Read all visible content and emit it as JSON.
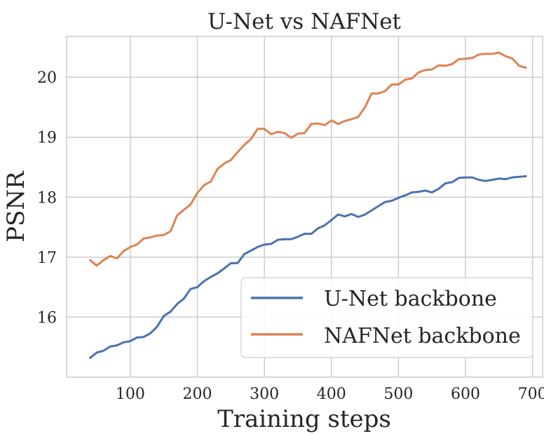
{
  "chart_data": {
    "type": "line",
    "title": "U-Net vs NAFNet",
    "xlabel": "Training steps",
    "ylabel": "PSNR",
    "xlim": [
      5,
      715
    ],
    "ylim": [
      15.0,
      20.68
    ],
    "xticks": [
      100,
      200,
      300,
      400,
      500,
      600,
      700
    ],
    "yticks": [
      16,
      17,
      18,
      19,
      20
    ],
    "grid": true,
    "legend_position": "lower-right",
    "colors": {
      "unet": "#4c72b0",
      "nafnet": "#dd8452"
    },
    "x": [
      40,
      50,
      60,
      70,
      80,
      90,
      100,
      110,
      120,
      130,
      140,
      150,
      160,
      170,
      180,
      190,
      200,
      210,
      220,
      230,
      240,
      250,
      260,
      270,
      280,
      290,
      300,
      310,
      320,
      330,
      340,
      350,
      360,
      370,
      380,
      390,
      400,
      410,
      420,
      430,
      440,
      450,
      460,
      470,
      480,
      490,
      500,
      510,
      520,
      530,
      540,
      550,
      560,
      570,
      580,
      590,
      600,
      610,
      620,
      630,
      640,
      650,
      660,
      670,
      680,
      690
    ],
    "series": [
      {
        "name": "U-Net backbone",
        "color": "#4c72b0",
        "values": [
          15.32,
          15.41,
          15.44,
          15.51,
          15.53,
          15.58,
          15.6,
          15.66,
          15.67,
          15.73,
          15.84,
          16.02,
          16.09,
          16.22,
          16.31,
          16.47,
          16.5,
          16.6,
          16.67,
          16.73,
          16.81,
          16.9,
          16.9,
          17.05,
          17.11,
          17.17,
          17.21,
          17.22,
          17.29,
          17.3,
          17.3,
          17.34,
          17.39,
          17.39,
          17.48,
          17.53,
          17.62,
          17.71,
          17.68,
          17.72,
          17.67,
          17.71,
          17.78,
          17.85,
          17.92,
          17.94,
          17.99,
          18.03,
          18.08,
          18.09,
          18.11,
          18.08,
          18.14,
          18.23,
          18.25,
          18.32,
          18.33,
          18.33,
          18.29,
          18.27,
          18.29,
          18.31,
          18.3,
          18.33,
          18.34,
          18.35
        ]
      },
      {
        "name": "NAFNet backbone",
        "color": "#dd8452",
        "values": [
          16.95,
          16.86,
          16.95,
          17.02,
          16.98,
          17.1,
          17.17,
          17.21,
          17.31,
          17.33,
          17.36,
          17.37,
          17.43,
          17.7,
          17.79,
          17.88,
          18.07,
          18.2,
          18.26,
          18.47,
          18.56,
          18.62,
          18.75,
          18.87,
          18.97,
          19.14,
          19.14,
          19.05,
          19.09,
          19.07,
          18.99,
          19.06,
          19.07,
          19.22,
          19.23,
          19.2,
          19.28,
          19.22,
          19.27,
          19.3,
          19.34,
          19.5,
          19.73,
          19.73,
          19.77,
          19.88,
          19.88,
          19.96,
          19.98,
          20.08,
          20.12,
          20.13,
          20.2,
          20.19,
          20.22,
          20.3,
          20.31,
          20.32,
          20.38,
          20.39,
          20.39,
          20.41,
          20.35,
          20.31,
          20.19,
          20.16
        ]
      }
    ]
  }
}
